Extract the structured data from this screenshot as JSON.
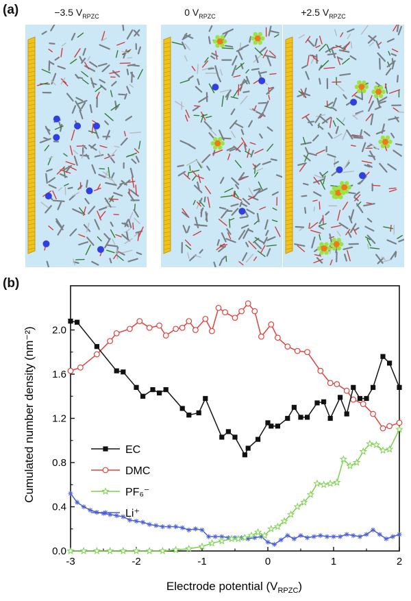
{
  "panel_a": {
    "label": "(a)",
    "snapshots": [
      {
        "title_main": "−3.5 V",
        "title_sub": "RPZC",
        "li_count": 8,
        "pf6_count": 0
      },
      {
        "title_main": "0 V",
        "title_sub": "RPZC",
        "li_count": 3,
        "pf6_count": 3
      },
      {
        "title_main": "+2.5 V",
        "title_sub": "RPZC",
        "li_count": 3,
        "pf6_count": 8
      }
    ]
  },
  "chart_data": {
    "panel_label": "(b)",
    "type": "line",
    "xlabel_main": "Electrode potential (V",
    "xlabel_sub": "RPZC",
    "xlabel_end": ")",
    "ylabel": "Cumulated number density (nm⁻²)",
    "xlim": [
      -3,
      2
    ],
    "ylim": [
      0,
      2.4
    ],
    "xticks": [
      -3,
      -2,
      -1,
      0,
      1,
      2
    ],
    "xtick_labels": [
      "-3",
      "-2",
      "-1",
      "0",
      "1",
      "2"
    ],
    "yticks": [
      0,
      0.4,
      0.8,
      1.2,
      1.6,
      2.0
    ],
    "ytick_labels": [
      "0.0",
      "0.4",
      "0.8",
      "1.2",
      "1.6",
      "2.0"
    ],
    "legend_position": "lower-left",
    "series": [
      {
        "name": "EC",
        "color": "#111111",
        "marker": "square-filled",
        "x": [
          -3.0,
          -2.9,
          -2.6,
          -2.3,
          -2.2,
          -2.0,
          -1.9,
          -1.75,
          -1.65,
          -1.55,
          -1.3,
          -1.2,
          -1.05,
          -0.95,
          -0.7,
          -0.6,
          -0.5,
          -0.35,
          -0.3,
          -0.15,
          0.0,
          0.05,
          0.15,
          0.3,
          0.4,
          0.5,
          0.6,
          0.75,
          0.85,
          0.95,
          1.1,
          1.2,
          1.3,
          1.4,
          1.5,
          1.6,
          1.75,
          1.85,
          2.0
        ],
        "y": [
          2.08,
          2.07,
          1.85,
          1.63,
          1.62,
          1.48,
          1.4,
          1.46,
          1.43,
          1.46,
          1.29,
          1.23,
          1.25,
          1.38,
          1.03,
          1.08,
          1.03,
          0.87,
          0.93,
          1.01,
          1.16,
          1.13,
          1.13,
          1.2,
          1.3,
          1.21,
          1.21,
          1.34,
          1.35,
          1.2,
          1.39,
          1.24,
          1.48,
          1.38,
          1.38,
          1.48,
          1.76,
          1.7,
          1.48
        ]
      },
      {
        "name": "DMC",
        "color": "#e0403a",
        "marker": "circle-open",
        "x": [
          -3.0,
          -2.85,
          -2.6,
          -2.4,
          -2.3,
          -2.1,
          -1.95,
          -1.8,
          -1.65,
          -1.55,
          -1.4,
          -1.3,
          -1.2,
          -1.1,
          -0.95,
          -0.85,
          -0.75,
          -0.65,
          -0.5,
          -0.4,
          -0.3,
          -0.2,
          -0.1,
          0.05,
          0.15,
          0.3,
          0.45,
          0.6,
          0.8,
          0.95,
          1.05,
          1.2,
          1.3,
          1.45,
          1.6,
          1.75,
          1.85,
          2.0
        ],
        "y": [
          1.63,
          1.66,
          1.78,
          1.9,
          1.97,
          2.01,
          2.08,
          2.02,
          2.04,
          1.95,
          2.01,
          2.02,
          2.08,
          2.0,
          2.1,
          1.99,
          2.2,
          2.16,
          2.11,
          2.17,
          2.24,
          2.17,
          1.94,
          2.05,
          1.93,
          1.85,
          1.81,
          1.8,
          1.63,
          1.52,
          1.51,
          1.45,
          1.37,
          1.33,
          1.24,
          1.11,
          1.13,
          1.16
        ]
      },
      {
        "name": "PF₆⁻",
        "color": "#79d24a",
        "marker": "star-open",
        "x": [
          -3.0,
          -2.8,
          -2.6,
          -2.4,
          -2.2,
          -2.0,
          -1.8,
          -1.6,
          -1.4,
          -1.2,
          -1.0,
          -0.85,
          -0.7,
          -0.55,
          -0.45,
          -0.35,
          -0.25,
          -0.15,
          -0.05,
          0.05,
          0.15,
          0.25,
          0.35,
          0.45,
          0.55,
          0.65,
          0.75,
          0.85,
          0.95,
          1.05,
          1.15,
          1.25,
          1.35,
          1.45,
          1.55,
          1.65,
          1.75,
          1.85,
          2.0
        ],
        "y": [
          0.0,
          0.0,
          0.0,
          0.0,
          0.0,
          0.0,
          0.0,
          0.0,
          0.01,
          0.02,
          0.04,
          0.07,
          0.09,
          0.11,
          0.11,
          0.12,
          0.14,
          0.17,
          0.14,
          0.2,
          0.22,
          0.27,
          0.33,
          0.4,
          0.44,
          0.51,
          0.61,
          0.6,
          0.61,
          0.62,
          0.83,
          0.77,
          0.8,
          0.9,
          0.97,
          0.96,
          0.91,
          0.92,
          1.1
        ]
      },
      {
        "name": "Li⁺",
        "color": "#4a5fd8",
        "marker": "asterisk",
        "x": [
          -3.0,
          -2.9,
          -2.8,
          -2.7,
          -2.6,
          -2.5,
          -2.4,
          -2.3,
          -2.2,
          -2.1,
          -2.0,
          -1.9,
          -1.8,
          -1.7,
          -1.6,
          -1.5,
          -1.4,
          -1.3,
          -1.2,
          -1.1,
          -1.0,
          -0.9,
          -0.8,
          -0.7,
          -0.6,
          -0.5,
          -0.4,
          -0.3,
          -0.2,
          -0.1,
          0.0,
          0.1,
          0.2,
          0.3,
          0.4,
          0.5,
          0.6,
          0.7,
          0.8,
          0.9,
          1.0,
          1.1,
          1.2,
          1.3,
          1.4,
          1.5,
          1.6,
          1.7,
          1.8,
          1.9,
          2.0
        ],
        "y": [
          0.52,
          0.44,
          0.4,
          0.37,
          0.35,
          0.34,
          0.33,
          0.32,
          0.31,
          0.28,
          0.27,
          0.26,
          0.24,
          0.23,
          0.22,
          0.22,
          0.22,
          0.21,
          0.19,
          0.2,
          0.19,
          0.13,
          0.13,
          0.13,
          0.12,
          0.12,
          0.12,
          0.11,
          0.12,
          0.13,
          0.08,
          0.06,
          0.1,
          0.14,
          0.11,
          0.14,
          0.12,
          0.13,
          0.14,
          0.13,
          0.13,
          0.13,
          0.15,
          0.14,
          0.13,
          0.15,
          0.19,
          0.15,
          0.11,
          0.13,
          0.15
        ]
      }
    ]
  }
}
